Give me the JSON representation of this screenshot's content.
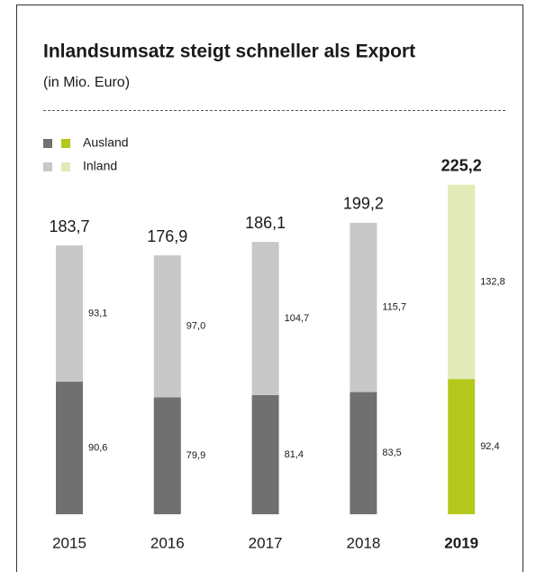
{
  "chart_data": {
    "type": "stacked_bar",
    "title": "Inlandsumsatz steigt schneller als Export",
    "subtitle": "(in Mio. Euro)",
    "categories": [
      "2015",
      "2016",
      "2017",
      "2018",
      "2019"
    ],
    "series": [
      {
        "name": "Ausland",
        "colors": [
          "#707070",
          "#707070",
          "#707070",
          "#707070",
          "#b5c81c"
        ],
        "values": [
          90.6,
          79.9,
          81.4,
          83.5,
          92.4
        ],
        "value_labels": [
          "90,6",
          "79,9",
          "81,4",
          "83,5",
          "92,4"
        ]
      },
      {
        "name": "Inland",
        "colors": [
          "#c8c8c8",
          "#c8c8c8",
          "#c8c8c8",
          "#c8c8c8",
          "#e3eab8"
        ],
        "values": [
          93.1,
          97.0,
          104.7,
          115.7,
          132.8
        ],
        "value_labels": [
          "93,1",
          "97,0",
          "104,7",
          "115,7",
          "132,8"
        ]
      }
    ],
    "totals": [
      183.7,
      176.9,
      186.1,
      199.2,
      225.2
    ],
    "total_labels": [
      "183,7",
      "176,9",
      "186,1",
      "199,2",
      "225,2"
    ]
  }
}
